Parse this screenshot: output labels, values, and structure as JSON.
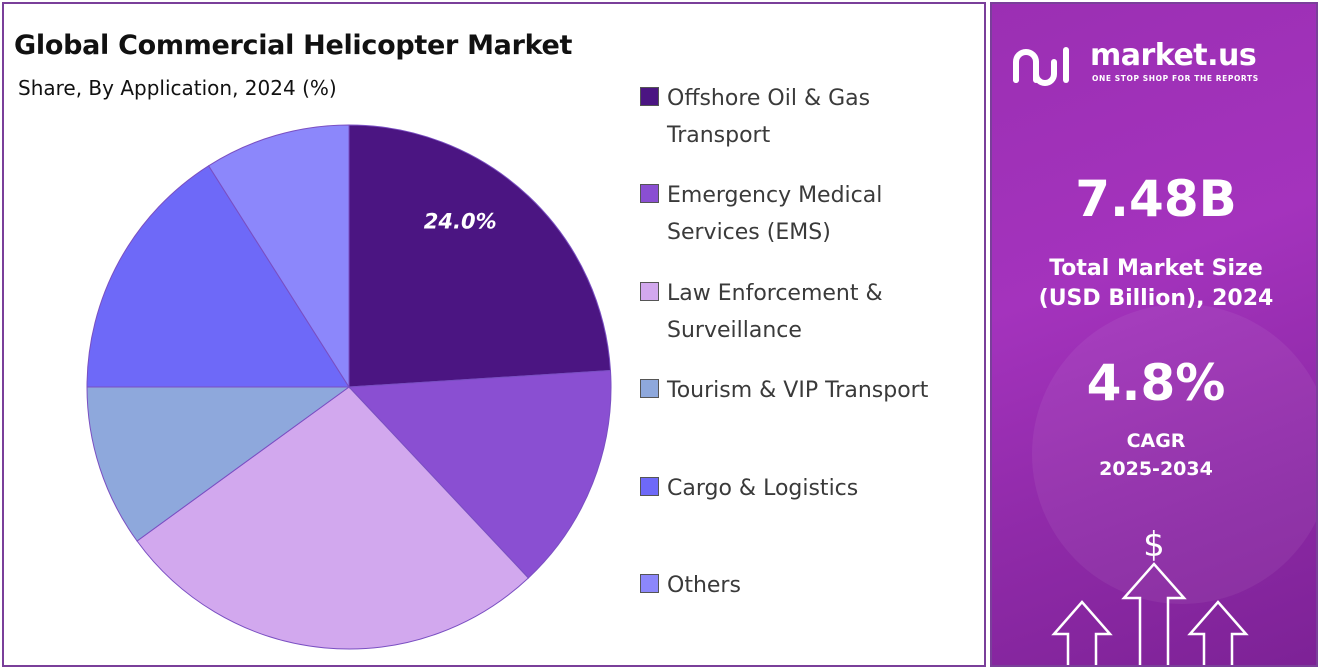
{
  "chart_data": {
    "type": "pie",
    "title": "Global Commercial Helicopter Market",
    "subtitle": "Share, By Application, 2024 (%)",
    "categories": [
      "Offshore Oil & Gas Transport",
      "Emergency Medical Services (EMS)",
      "Law Enforcement & Surveillance",
      "Tourism & VIP Transport",
      "Cargo & Logistics",
      "Others"
    ],
    "legend_lines": [
      [
        "Offshore Oil & Gas",
        "Transport"
      ],
      [
        "Emergency Medical",
        "Services (EMS)"
      ],
      [
        "Law Enforcement &",
        "Surveillance"
      ],
      [
        "Tourism & VIP Transport"
      ],
      [
        "Cargo & Logistics"
      ],
      [
        "Others"
      ]
    ],
    "values": [
      24.0,
      14.0,
      27.0,
      10.0,
      16.0,
      9.0
    ],
    "colors": [
      "#4b1582",
      "#8a4fd2",
      "#d2a8ee",
      "#8ea8dc",
      "#6e69f8",
      "#8c87fb"
    ],
    "data_labels": [
      "24.0%",
      "",
      "",
      "",
      "",
      ""
    ],
    "legend_position": "right"
  },
  "brand": {
    "name": "market.us",
    "tagline": "ONE STOP SHOP FOR THE REPORTS"
  },
  "stats": {
    "market_size_value": "7.48B",
    "market_size_label_line1": "Total Market Size",
    "market_size_label_line2": "(USD Billion), 2024",
    "cagr_value": "4.8%",
    "cagr_label_line1": "CAGR",
    "cagr_label_line2": "2025-2034"
  },
  "icons": {
    "dollar": "$",
    "growth": "growth-arrows-icon"
  }
}
